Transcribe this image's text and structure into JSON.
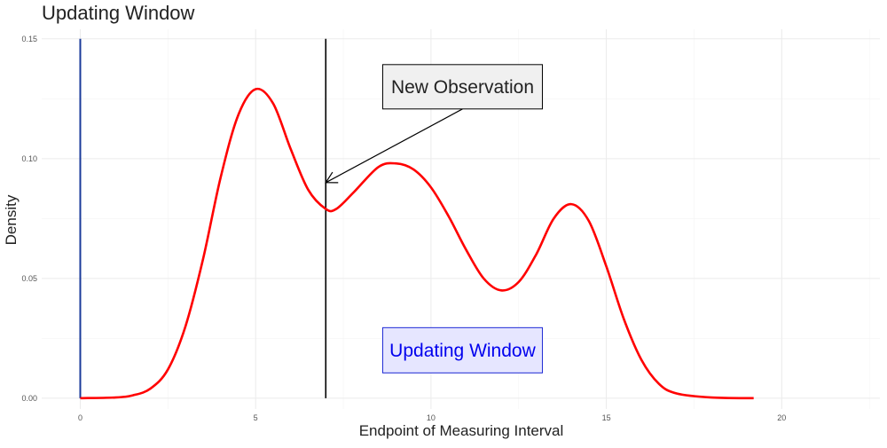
{
  "chart_data": {
    "type": "line",
    "title": "Updating Window",
    "xlabel": "Endpoint of Measuring Interval",
    "ylabel": "Density",
    "xlim": [
      -1.1,
      22.8
    ],
    "ylim": [
      -0.0045,
      0.154
    ],
    "x_ticks": [
      0,
      5,
      10,
      15,
      20
    ],
    "x_tick_labels": [
      "0",
      "5",
      "10",
      "15",
      "20"
    ],
    "y_ticks": [
      0.0,
      0.05,
      0.1,
      0.15
    ],
    "y_tick_labels": [
      "0.00",
      "0.05",
      "0.10",
      "0.15"
    ],
    "grid": true,
    "legend": "none",
    "series": [
      {
        "color": "#ff0000",
        "x": [
          0,
          1,
          1.5,
          2,
          2.5,
          3,
          3.5,
          4,
          4.5,
          5,
          5.5,
          6,
          6.5,
          7,
          7.3,
          7.8,
          8.5,
          9,
          9.5,
          10,
          10.5,
          11,
          11.5,
          12,
          12.5,
          13,
          13.5,
          14,
          14.5,
          15,
          15.5,
          16,
          16.5,
          17,
          18,
          19.2
        ],
        "y": [
          0.0,
          0.0003,
          0.0012,
          0.004,
          0.012,
          0.03,
          0.058,
          0.092,
          0.118,
          0.129,
          0.123,
          0.104,
          0.087,
          0.079,
          0.079,
          0.086,
          0.0965,
          0.098,
          0.0955,
          0.088,
          0.076,
          0.062,
          0.05,
          0.045,
          0.0485,
          0.06,
          0.075,
          0.081,
          0.074,
          0.055,
          0.033,
          0.016,
          0.006,
          0.002,
          0.0003,
          0.0
        ]
      }
    ],
    "vlines": [
      {
        "x": 0,
        "y_top": 0.15,
        "color": "#1a3a9a"
      },
      {
        "x": 7,
        "y_top": 0.15,
        "color": "#000000"
      }
    ],
    "annotations": [
      {
        "label": "New Observation",
        "x": 10.9,
        "y": 0.13,
        "arrow_to": [
          7.0,
          0.09
        ],
        "fill": "#f0f0f0",
        "text_color": "#222222"
      },
      {
        "label": "Updating Window",
        "x": 10.9,
        "y": 0.02,
        "fill": "#e6e6ff",
        "text_color": "#0000ee"
      }
    ]
  }
}
